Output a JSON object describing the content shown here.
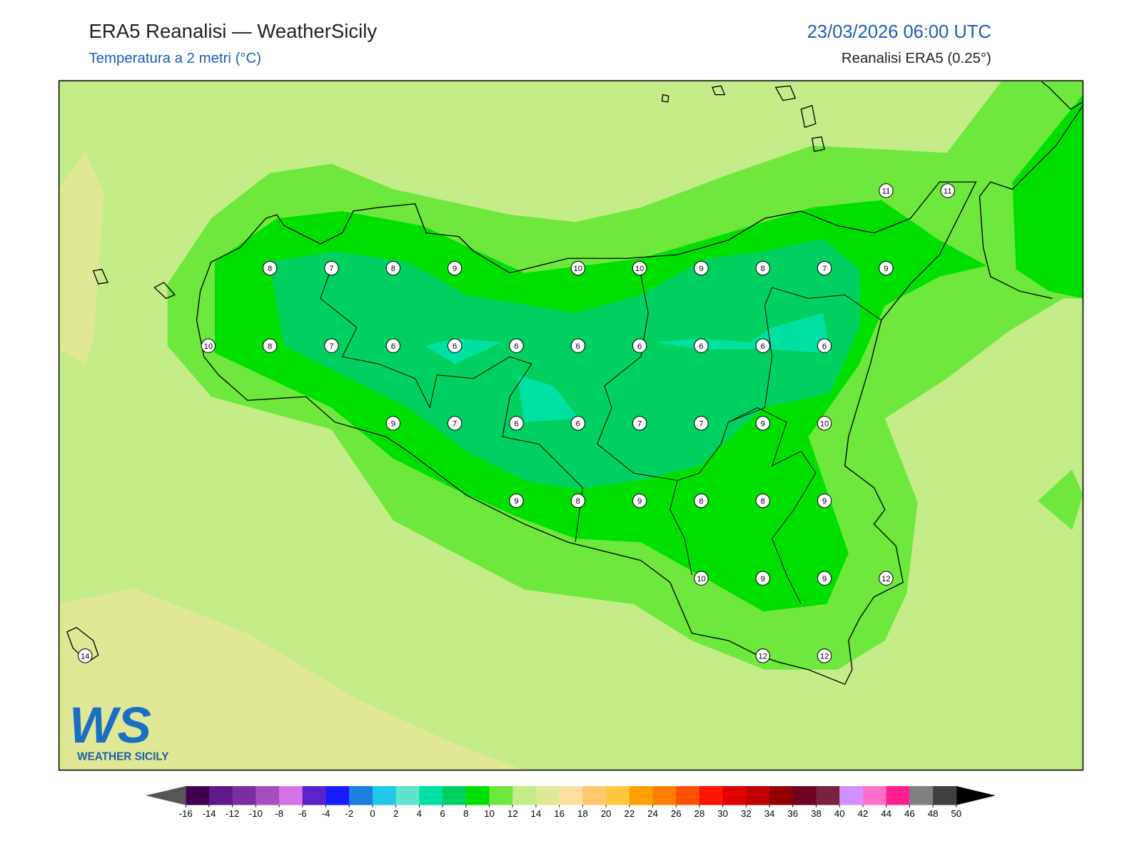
{
  "header": {
    "title": "ERA5 Reanalisi — WeatherSicily",
    "subtitle": "Temperatura a 2 metri (°C)",
    "valid_time": "23/03/2026 06:00 UTC",
    "source": "Reanalisi ERA5 (0.25°)"
  },
  "stations": [
    11,
    11,
    8,
    7,
    8,
    9,
    10,
    10,
    9,
    8,
    7,
    9,
    10,
    8,
    7,
    6,
    6,
    6,
    6,
    6,
    6,
    6,
    6,
    9,
    7,
    6,
    6,
    7,
    7,
    9,
    10,
    9,
    8,
    9,
    8,
    8,
    9,
    10,
    9,
    9,
    12,
    14,
    12,
    12
  ],
  "colorbar": {
    "ticks": [
      -16,
      -14,
      -12,
      -10,
      -8,
      -6,
      -4,
      -2,
      0,
      2,
      4,
      6,
      8,
      10,
      12,
      14,
      16,
      18,
      20,
      22,
      24,
      26,
      28,
      30,
      32,
      34,
      36,
      38,
      40,
      42,
      44,
      46,
      48,
      50
    ],
    "colors": [
      "#3f0050",
      "#5f1a8a",
      "#7a2fa0",
      "#a64dbf",
      "#d673e6",
      "#5a22c8",
      "#1a1aff",
      "#1a7fe0",
      "#1ec8e6",
      "#5ee6cc",
      "#00e0a0",
      "#00d060",
      "#00e000",
      "#6ee83c",
      "#c4ec88",
      "#e0e896",
      "#ffe0a0",
      "#ffc870",
      "#ffc840",
      "#ffa000",
      "#ff8000",
      "#ff5000",
      "#ff1400",
      "#e00000",
      "#c00000",
      "#900000",
      "#700020",
      "#7a2040",
      "#d090ff",
      "#ff70c8",
      "#ff2090",
      "#808080",
      "#404040"
    ],
    "under_color": "#555555",
    "over_color": "#000000"
  },
  "logo": {
    "mark": "WS",
    "text": "WEATHER SICILY"
  }
}
